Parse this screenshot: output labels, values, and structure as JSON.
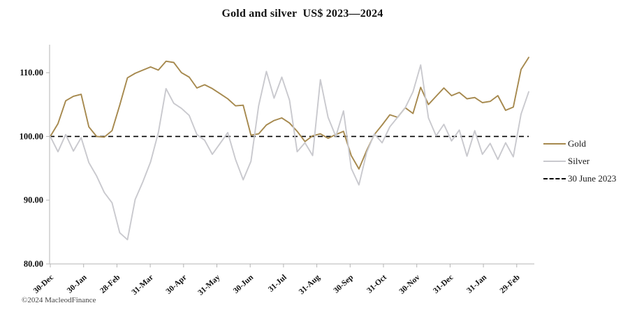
{
  "page": {
    "title": "Gold and silver  US$ 2023—2024",
    "copyright": "©2024 MacleodFinance"
  },
  "legend": [
    {
      "label": "Gold",
      "color": "#a6894e",
      "style": "solid"
    },
    {
      "label": "Silver",
      "color": "#c9c9ce",
      "style": "solid"
    },
    {
      "label": "30 June 2023",
      "color": "#000000",
      "style": "dashed"
    }
  ],
  "chart_data": {
    "type": "line",
    "title": "Gold and silver  US$ 2023—2024",
    "xlabel": "",
    "ylabel": "",
    "ylim": [
      78,
      114.5
    ],
    "grid": false,
    "legend_position": "right",
    "x_tick_labels": [
      "30-Dec",
      "30-Jan",
      "28-Feb",
      "31-Mar",
      "30-Apr",
      "31-May",
      "30-Jun",
      "31-Jul",
      "31-Aug",
      "30-Sep",
      "31-Oct",
      "30-Nov",
      "31-Dec",
      "31-Jan",
      "29-Feb"
    ],
    "y_ticks": [
      80,
      90,
      100,
      110
    ],
    "y_tick_labels": [
      "80.00",
      "90.00",
      "100.00",
      "110.00"
    ],
    "reference_line": {
      "label": "30 June 2023",
      "value": 100,
      "color": "#000000",
      "style": "dashed"
    },
    "sampling": "weekly (approx.), indexed 30-Dec = 100",
    "series": [
      {
        "name": "Gold",
        "color": "#a6894e",
        "values": [
          100.0,
          102.0,
          105.6,
          106.3,
          106.6,
          101.5,
          100.0,
          99.9,
          100.9,
          104.9,
          109.2,
          109.9,
          110.4,
          110.9,
          110.4,
          111.8,
          111.6,
          110.0,
          109.3,
          107.6,
          108.1,
          107.5,
          106.7,
          105.9,
          104.8,
          104.9,
          100.2,
          100.4,
          101.8,
          102.5,
          102.9,
          102.1,
          100.8,
          99.2,
          100.1,
          100.4,
          99.7,
          100.3,
          100.8,
          97.0,
          94.9,
          97.8,
          100.3,
          101.8,
          103.4,
          103.0,
          104.5,
          103.6,
          107.7,
          105.0,
          106.3,
          107.6,
          106.4,
          106.9,
          105.9,
          106.1,
          105.3,
          105.5,
          106.4,
          104.1,
          104.6,
          110.5,
          112.4
        ]
      },
      {
        "name": "Silver",
        "color": "#c9c9ce",
        "values": [
          100.0,
          97.6,
          100.3,
          97.7,
          99.8,
          95.9,
          93.8,
          91.2,
          89.6,
          84.9,
          83.8,
          90.1,
          92.9,
          96.0,
          100.6,
          107.5,
          105.2,
          104.4,
          103.3,
          100.3,
          99.4,
          97.2,
          98.9,
          100.6,
          96.4,
          93.2,
          96.1,
          104.8,
          110.2,
          106.0,
          109.3,
          105.7,
          97.6,
          99.0,
          97.0,
          108.9,
          103.0,
          100.0,
          104.0,
          95.0,
          92.4,
          97.5,
          100.4,
          99.0,
          101.5,
          103.0,
          104.5,
          107.0,
          111.2,
          102.9,
          100.1,
          101.9,
          99.3,
          101.0,
          96.9,
          100.9,
          97.2,
          98.9,
          96.4,
          99.0,
          96.8,
          103.5,
          107.0
        ]
      }
    ]
  }
}
